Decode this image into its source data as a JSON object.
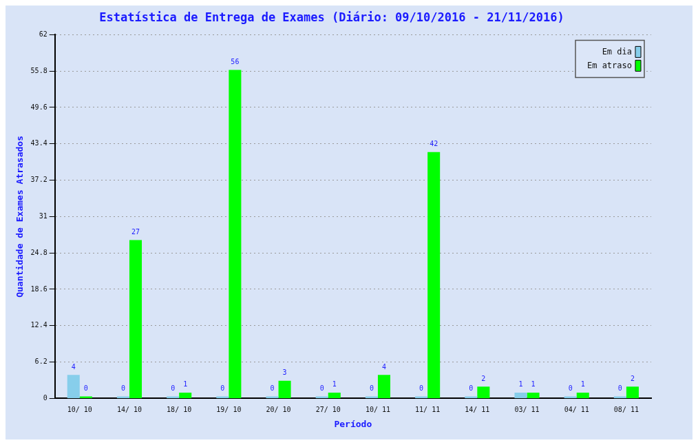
{
  "chart_data": {
    "type": "bar",
    "title": "Estatística de Entrega de Exames (Diário: 09/10/2016 - 21/11/2016)",
    "xlabel": "Período",
    "ylabel": "Quantidade de Exames Atrasados",
    "categories": [
      "10/ 10",
      "14/ 10",
      "18/ 10",
      "19/ 10",
      "20/ 10",
      "27/ 10",
      "10/ 11",
      "11/ 11",
      "14/ 11",
      "03/ 11",
      "04/ 11",
      "08/ 11"
    ],
    "series": [
      {
        "name": "Em dia",
        "color": "#87ceeb",
        "values": [
          4,
          0,
          0,
          0,
          0,
          0,
          0,
          0,
          0,
          1,
          0,
          0
        ]
      },
      {
        "name": "Em atraso",
        "color": "#00ff00",
        "values": [
          0,
          27,
          1,
          56,
          3,
          1,
          4,
          42,
          2,
          1,
          1,
          2
        ]
      }
    ],
    "ylim": [
      0,
      62
    ],
    "yticks": [
      0,
      6.2,
      12.4,
      18.6,
      24.8,
      31,
      37.2,
      43.4,
      49.6,
      55.8,
      62
    ],
    "grid": "y",
    "legend": "top right",
    "data_labels": true
  }
}
